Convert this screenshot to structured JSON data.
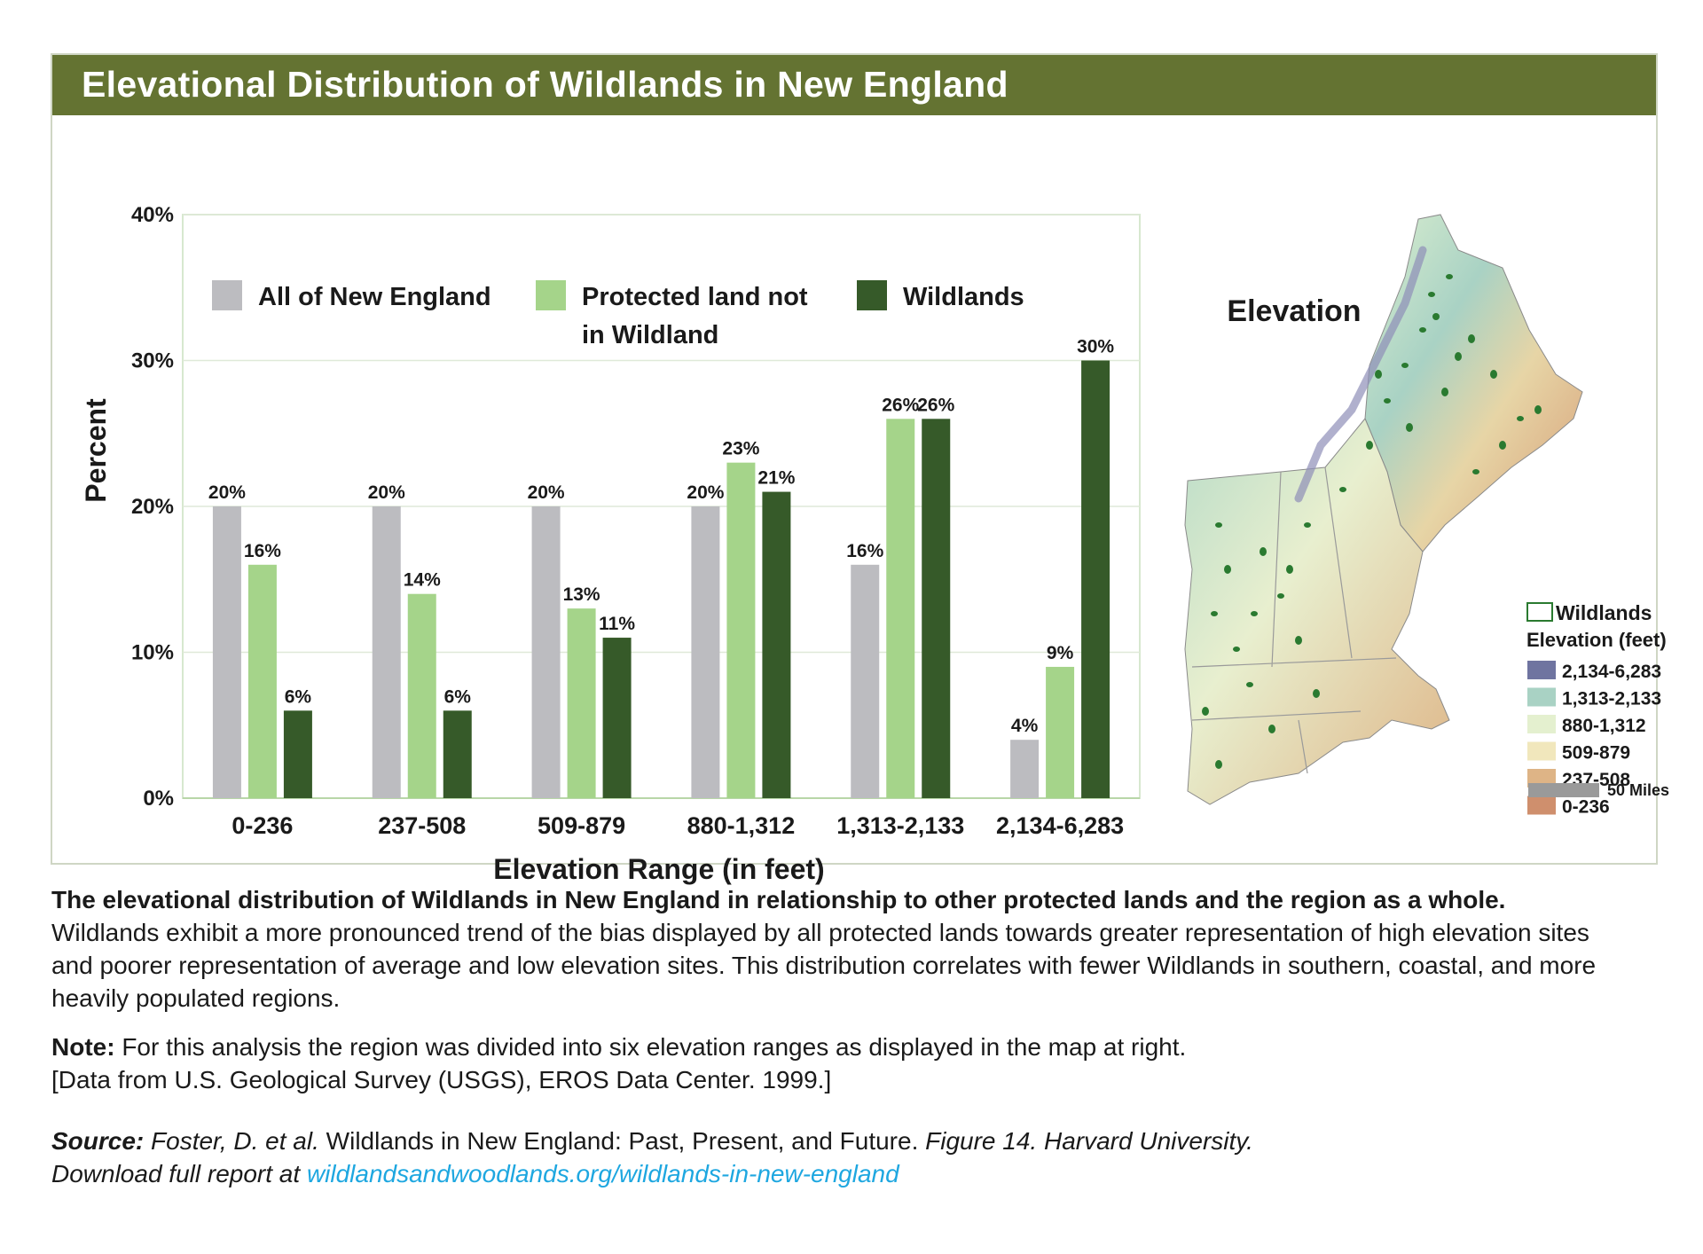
{
  "header": {
    "title": "Elevational Distribution of Wildlands in New England"
  },
  "colors": {
    "banner": "#647332",
    "all_new_england": "#bcbcc0",
    "protected_not_wildland": "#a5d48a",
    "wildlands": "#365a29",
    "link": "#1ea7e0"
  },
  "chart_data": {
    "type": "bar",
    "categories": [
      "0-236",
      "237-508",
      "509-879",
      "880-1,312",
      "1,313-2,133",
      "2,134-6,283"
    ],
    "series": [
      {
        "name": "All of New England",
        "values": [
          20,
          20,
          20,
          20,
          16,
          4
        ],
        "labels": [
          "20%",
          "20%",
          "20%",
          "20%",
          "16%",
          "4%"
        ]
      },
      {
        "name": "Protected land not in Wildland",
        "name_lines": [
          "Protected land not",
          "in Wildland"
        ],
        "values": [
          16,
          14,
          13,
          23,
          26,
          9
        ],
        "labels": [
          "16%",
          "14%",
          "13%",
          "23%",
          "26%",
          "9%"
        ]
      },
      {
        "name": "Wildlands",
        "values": [
          6,
          6,
          11,
          21,
          26,
          30
        ],
        "labels": [
          "6%",
          "6%",
          "11%",
          "21%",
          "26%",
          "30%"
        ]
      }
    ],
    "xlabel": "Elevation Range (in feet)",
    "ylabel": "Percent",
    "ylim": [
      0,
      40
    ],
    "yticks": [
      "0%",
      "10%",
      "20%",
      "30%",
      "40%"
    ],
    "grid": true,
    "legend_position": "top"
  },
  "map": {
    "title": "Elevation",
    "legend_wildlands": "Wildlands",
    "legend_elevation_title": "Elevation (feet)",
    "elevation_classes": [
      {
        "label": "2,134-6,283",
        "color": "#6f74a0"
      },
      {
        "label": "1,313-2,133",
        "color": "#a9d2c4"
      },
      {
        "label": "880-1,312",
        "color": "#e4f0cf"
      },
      {
        "label": "509-879",
        "color": "#f1e7bc"
      },
      {
        "label": "237-508",
        "color": "#deb486"
      },
      {
        "label": "0-236",
        "color": "#cf8f6d"
      }
    ],
    "scale_label": "50 Miles"
  },
  "caption": {
    "bold": "The elevational distribution of Wildlands in New England in relationship to other protected lands and the region as a whole.",
    "text": "Wildlands exhibit a more pronounced trend of the bias displayed by all protected lands towards greater representation of high elevation sites and poorer representation of average and low elevation sites. This distribution correlates with fewer Wildlands in southern, coastal, and more heavily populated regions."
  },
  "note": {
    "label": "Note:",
    "text": "For this analysis the region was divided into six elevation ranges as displayed in the map at right.",
    "data_line": "[Data from U.S. Geological Survey (USGS), EROS Data Center. 1999.]"
  },
  "source": {
    "label": "Source:",
    "authors": "Foster, D. et al.",
    "title": "Wildlands in New England: Past, Present, and Future.",
    "figure": "Figure 14. Harvard University.",
    "download": "Download full report at",
    "link": "wildlandsandwoodlands.org/wildlands-in-new-england"
  }
}
